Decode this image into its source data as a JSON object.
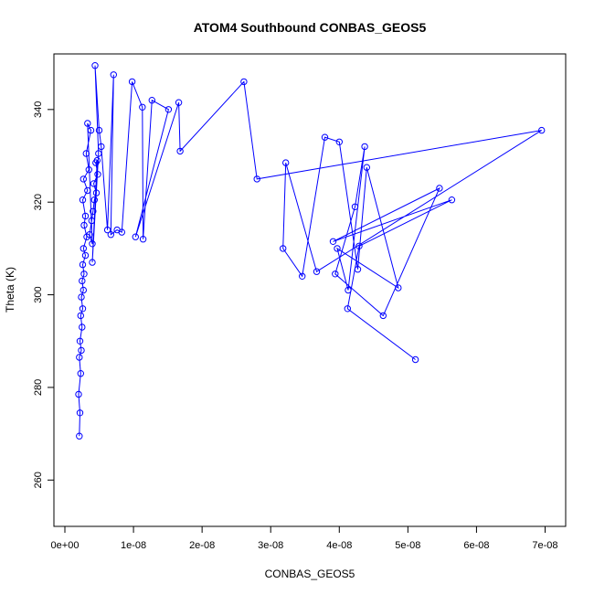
{
  "chart_data": {
    "type": "line",
    "title": "ATOM4 Southbound CONBAS_GEOS5",
    "xlabel": "CONBAS_GEOS5",
    "ylabel": "Theta (K)",
    "xlim": [
      -1.6e-09,
      7.3e-08
    ],
    "ylim": [
      250,
      352
    ],
    "x_ticks": [
      0,
      1e-08,
      2e-08,
      3e-08,
      4e-08,
      5e-08,
      6e-08,
      7e-08
    ],
    "x_tick_labels": [
      "0e+00",
      "1e-08",
      "2e-08",
      "3e-08",
      "4e-08",
      "5e-08",
      "6e-08",
      "7e-08"
    ],
    "y_ticks": [
      260,
      280,
      300,
      320,
      340
    ],
    "y_tick_labels": [
      "260",
      "280",
      "300",
      "320",
      "340"
    ],
    "grid": false,
    "series": [
      {
        "color": "#0000ff",
        "marker": "open-circle",
        "x": [
          2.1e-09,
          2.2e-09,
          2e-09,
          2.3e-09,
          2.1e-09,
          2.4e-09,
          2.2e-09,
          2.5e-09,
          2.3e-09,
          2.6e-09,
          2.4e-09,
          2.7e-09,
          2.5e-09,
          2.8e-09,
          2.6e-09,
          3e-09,
          2.7e-09,
          3.2e-09,
          2.8e-09,
          3e-09,
          2.6e-09,
          3.3e-09,
          2.7e-09,
          3.5e-09,
          3.1e-09,
          3.8e-09,
          3.3e-09,
          4e-09,
          3.6e-09,
          3.9e-09,
          4.1e-09,
          4.3e-09,
          4.6e-09,
          4.2e-09,
          4.8e-09,
          4.5e-09,
          4.7e-09,
          4e-09,
          4.9e-09,
          4.4e-09,
          5e-09,
          5.3e-09,
          6.2e-09,
          7.1e-09,
          6.7e-09,
          7.6e-09,
          8.3e-09,
          9.8e-09,
          1.13e-08,
          1.14e-08,
          1.27e-08,
          1.51e-08,
          1.03e-08,
          1.66e-08,
          1.68e-08,
          2.61e-08,
          2.8e-08,
          6.95e-08,
          3.67e-08,
          3.22e-08,
          3.18e-08,
          3.46e-08,
          3.79e-08,
          4e-08,
          4.27e-08,
          4.4e-08,
          4.86e-08,
          3.97e-08,
          4.13e-08,
          4.37e-08,
          4.23e-08,
          3.94e-08,
          4.64e-08,
          5.46e-08,
          3.91e-08,
          5.64e-08,
          4.29e-08,
          4.12e-08,
          5.11e-08
        ],
        "y": [
          269.5,
          274.5,
          278.5,
          283.0,
          286.5,
          288.0,
          290.0,
          293.0,
          295.5,
          297.0,
          299.5,
          301.0,
          303.0,
          304.5,
          306.5,
          308.5,
          310.0,
          312.5,
          315.0,
          317.0,
          320.5,
          322.5,
          325.0,
          327.0,
          330.5,
          335.5,
          337.0,
          311.0,
          313.0,
          316.0,
          318.0,
          320.5,
          322.0,
          324.0,
          326.0,
          328.5,
          329.0,
          307.0,
          330.5,
          349.5,
          335.5,
          332.0,
          314.0,
          347.5,
          313.0,
          314.0,
          313.5,
          346.0,
          340.5,
          312.0,
          342.0,
          340.0,
          312.5,
          341.5,
          331.0,
          346.0,
          325.0,
          335.5,
          305.0,
          328.5,
          310.0,
          304.0,
          334.0,
          333.0,
          305.5,
          327.5,
          301.5,
          310.0,
          301.0,
          332.0,
          319.0,
          304.5,
          295.5,
          323.0,
          311.5,
          320.5,
          310.5,
          297.0,
          286.0
        ]
      }
    ]
  }
}
